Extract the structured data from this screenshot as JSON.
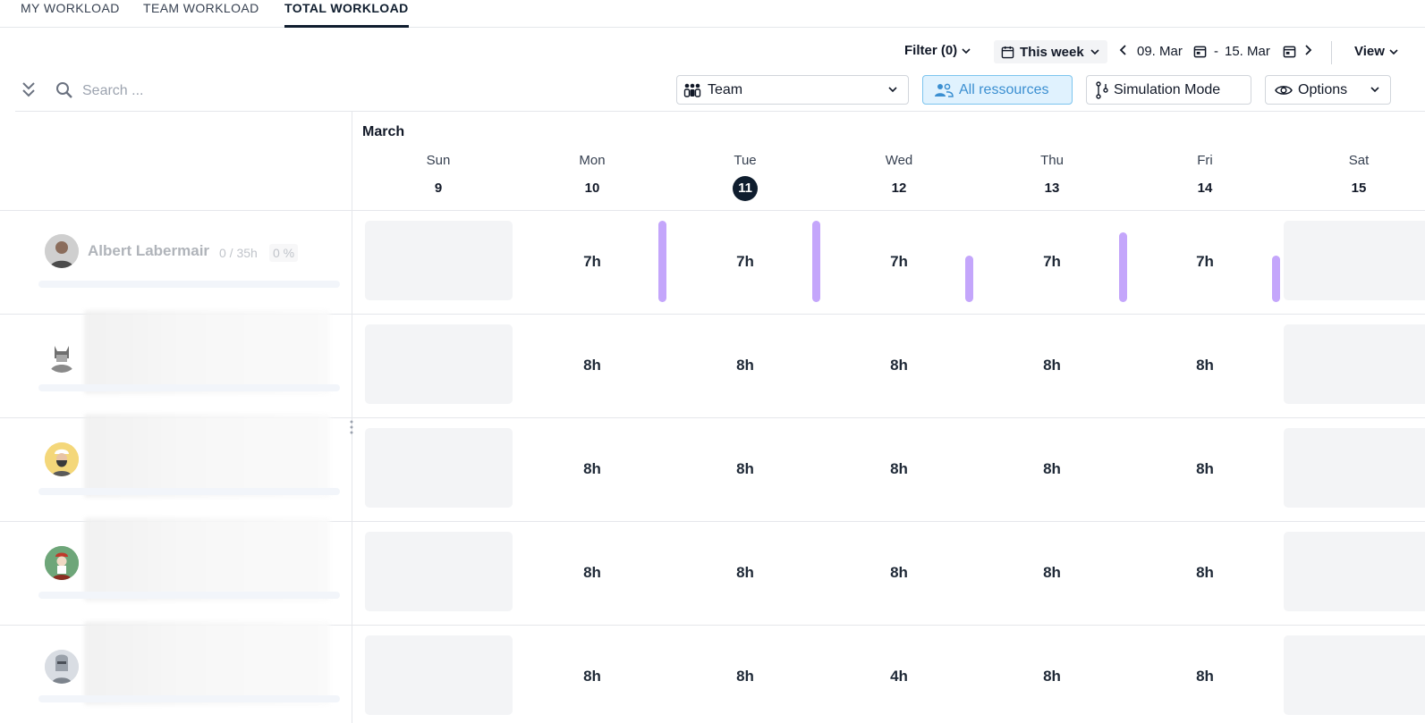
{
  "tabs": [
    {
      "label": "MY WORKLOAD",
      "active": false
    },
    {
      "label": "TEAM WORKLOAD",
      "active": false
    },
    {
      "label": "TOTAL WORKLOAD",
      "active": true
    }
  ],
  "toolbar": {
    "filter_label": "Filter (0)",
    "period_label": "This week",
    "date_from": "09. Mar",
    "date_sep": "-",
    "date_to": "15. Mar",
    "view_label": "View"
  },
  "search": {
    "placeholder": "Search ..."
  },
  "controls": {
    "team_label": "Team",
    "all_resources_label": "All ressources",
    "simulation_label": "Simulation Mode",
    "options_label": "Options"
  },
  "calendar": {
    "month": "March",
    "days": [
      {
        "name": "Sun",
        "num": "9",
        "today": false
      },
      {
        "name": "Mon",
        "num": "10",
        "today": false
      },
      {
        "name": "Tue",
        "num": "11",
        "today": true
      },
      {
        "name": "Wed",
        "num": "12",
        "today": false
      },
      {
        "name": "Thu",
        "num": "13",
        "today": false
      },
      {
        "name": "Fri",
        "num": "14",
        "today": false
      },
      {
        "name": "Sat",
        "num": "15",
        "today": false
      }
    ]
  },
  "people": [
    {
      "name": "Albert Labermair",
      "hours": "0 / 35h",
      "percent": "0 %",
      "blurred": false,
      "days": [
        "7h",
        "7h",
        "7h",
        "7h",
        "7h"
      ],
      "load_fraction": [
        1.0,
        1.0,
        0.57,
        0.86,
        0.57
      ]
    },
    {
      "name": "",
      "hours": "",
      "percent": "",
      "blurred": true,
      "days": [
        "8h",
        "8h",
        "8h",
        "8h",
        "8h"
      ],
      "load_fraction": [
        0,
        0,
        0,
        0,
        0
      ]
    },
    {
      "name": "",
      "hours": "",
      "percent": "",
      "blurred": true,
      "days": [
        "8h",
        "8h",
        "8h",
        "8h",
        "8h"
      ],
      "load_fraction": [
        0,
        0,
        0,
        0,
        0
      ]
    },
    {
      "name": "",
      "hours": "",
      "percent": "",
      "blurred": true,
      "days": [
        "8h",
        "8h",
        "8h",
        "8h",
        "8h"
      ],
      "load_fraction": [
        0,
        0,
        0,
        0,
        0
      ]
    },
    {
      "name": "",
      "hours": "",
      "percent": "",
      "blurred": true,
      "days": [
        "8h",
        "8h",
        "4h",
        "8h",
        "8h"
      ],
      "load_fraction": [
        0,
        0,
        0,
        0,
        0
      ]
    }
  ],
  "colors": {
    "accent_dark": "#0f1d2e",
    "load_bar": "#c4a6fb",
    "all_resources_bg": "#e0f2fe",
    "all_resources_text": "#3b8fd1"
  }
}
